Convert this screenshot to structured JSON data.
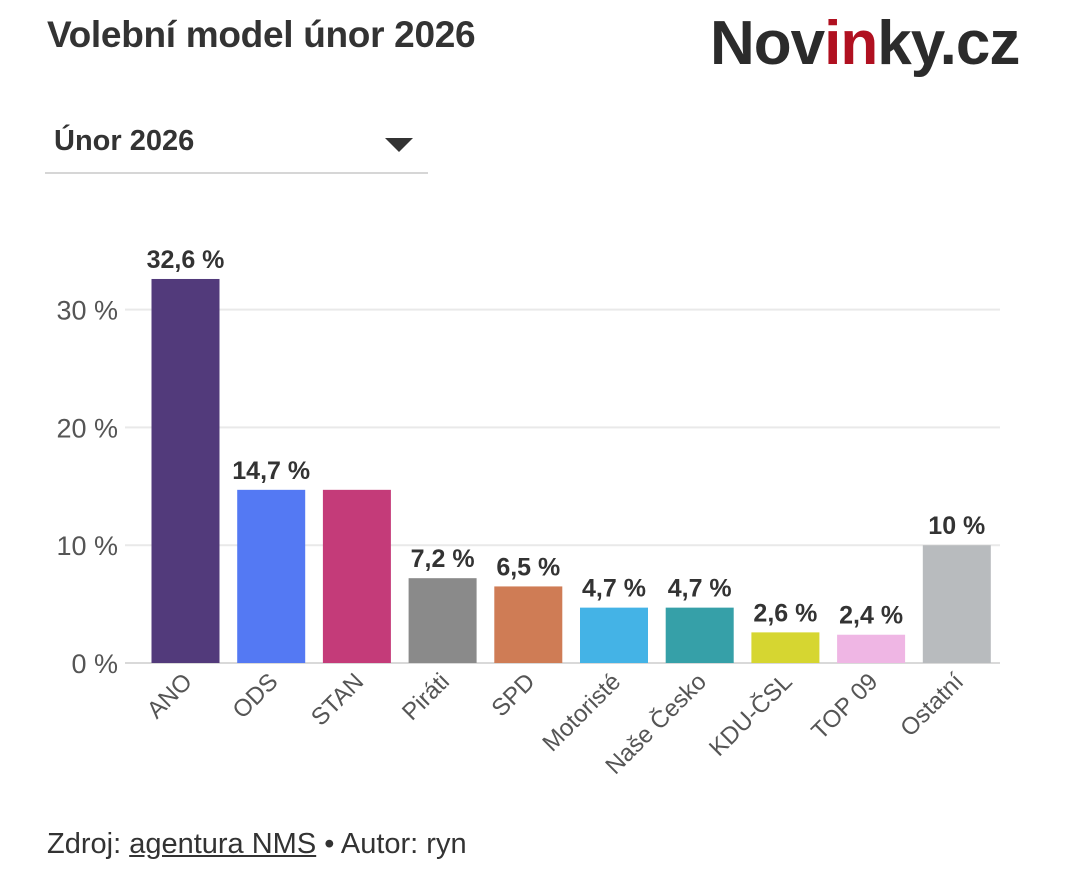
{
  "header": {
    "title": "Volební model únor 2026",
    "logo_text_start": "Nov",
    "logo_text_accent": "in",
    "logo_text_end": "ky.cz"
  },
  "dropdown": {
    "selected": "Únor 2026"
  },
  "chart_data": {
    "type": "bar",
    "categories": [
      "ANO",
      "ODS",
      "STAN",
      "Piráti",
      "SPD",
      "Motoristé",
      "Naše Česko",
      "KDU-ČSL",
      "TOP 09",
      "Ostatní"
    ],
    "values": [
      32.6,
      14.7,
      14.7,
      7.2,
      6.5,
      4.7,
      4.7,
      2.6,
      2.4,
      10
    ],
    "data_labels": [
      "32,6 %",
      "14,7 %",
      "",
      "7,2 %",
      "6,5 %",
      "4,7 %",
      "4,7 %",
      "2,6 %",
      "2,4 %",
      "10 %"
    ],
    "colors": [
      "#523a7b",
      "#5479f3",
      "#c43b79",
      "#8a8a8a",
      "#cf7c55",
      "#44b3e6",
      "#36a0a8",
      "#d6d631",
      "#efb6e4",
      "#b8bbbe"
    ],
    "yticks": [
      0,
      10,
      20,
      30
    ],
    "ytick_labels": [
      "0 %",
      "10 %",
      "20 %",
      "30 %"
    ],
    "ylim": [
      0,
      35
    ],
    "grid": true,
    "title": "Volební model únor 2026",
    "xlabel": "",
    "ylabel": ""
  },
  "footer": {
    "source_prefix": "Zdroj: ",
    "source_link": "agentura NMS",
    "separator": " • ",
    "author": "Autor: ryn"
  }
}
